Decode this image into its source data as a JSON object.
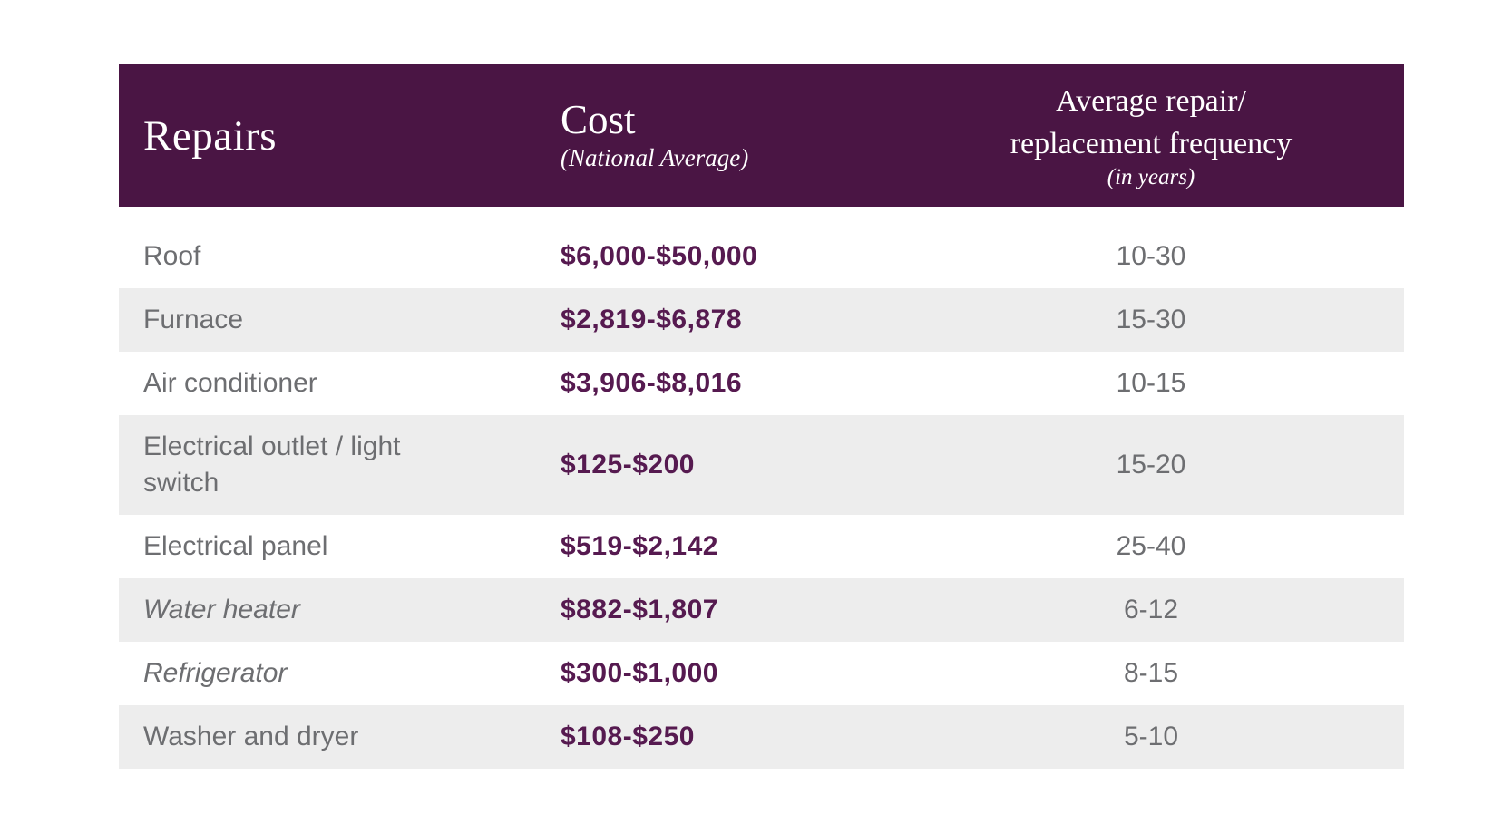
{
  "colors": {
    "header_bg": "#4a1544",
    "header_text": "#ffffff",
    "stripe": "#ededed",
    "row_text": "#6d6e71",
    "cost_text": "#561a50",
    "page_bg": "#ffffff"
  },
  "table": {
    "header": {
      "col1": "Repairs",
      "col2_title": "Cost",
      "col2_sub": "(National Average)",
      "col3_line1": "Average repair/",
      "col3_line2": "replacement frequency",
      "col3_sub": "(in years)"
    },
    "rows": [
      {
        "repair": "Roof",
        "cost": "$6,000-$50,000",
        "frequency": "10-30",
        "italic": false,
        "shaded": false
      },
      {
        "repair": "Furnace",
        "cost": "$2,819-$6,878",
        "frequency": "15-30",
        "italic": false,
        "shaded": true
      },
      {
        "repair": "Air conditioner",
        "cost": "$3,906-$8,016",
        "frequency": "10-15",
        "italic": false,
        "shaded": false
      },
      {
        "repair": "Electrical outlet / light switch",
        "cost": "$125-$200",
        "frequency": "15-20",
        "italic": false,
        "shaded": true
      },
      {
        "repair": "Electrical panel",
        "cost": "$519-$2,142",
        "frequency": "25-40",
        "italic": false,
        "shaded": false
      },
      {
        "repair": "Water heater",
        "cost": "$882-$1,807",
        "frequency": "6-12",
        "italic": true,
        "shaded": true
      },
      {
        "repair": "Refrigerator",
        "cost": "$300-$1,000",
        "frequency": "8-15",
        "italic": true,
        "shaded": false
      },
      {
        "repair": "Washer and dryer",
        "cost": "$108-$250",
        "frequency": "5-10",
        "italic": false,
        "shaded": true
      }
    ]
  },
  "chart_data": {
    "type": "table",
    "title": "",
    "columns": [
      "Repairs",
      "Cost (National Average)",
      "Average repair/replacement frequency (in years)"
    ],
    "rows": [
      [
        "Roof",
        "$6,000-$50,000",
        "10-30"
      ],
      [
        "Furnace",
        "$2,819-$6,878",
        "15-30"
      ],
      [
        "Air conditioner",
        "$3,906-$8,016",
        "10-15"
      ],
      [
        "Electrical outlet / light switch",
        "$125-$200",
        "15-20"
      ],
      [
        "Electrical panel",
        "$519-$2,142",
        "25-40"
      ],
      [
        "Water heater",
        "$882-$1,807",
        "6-12"
      ],
      [
        "Refrigerator",
        "$300-$1,000",
        "8-15"
      ],
      [
        "Washer and dryer",
        "$108-$250",
        "5-10"
      ]
    ]
  }
}
